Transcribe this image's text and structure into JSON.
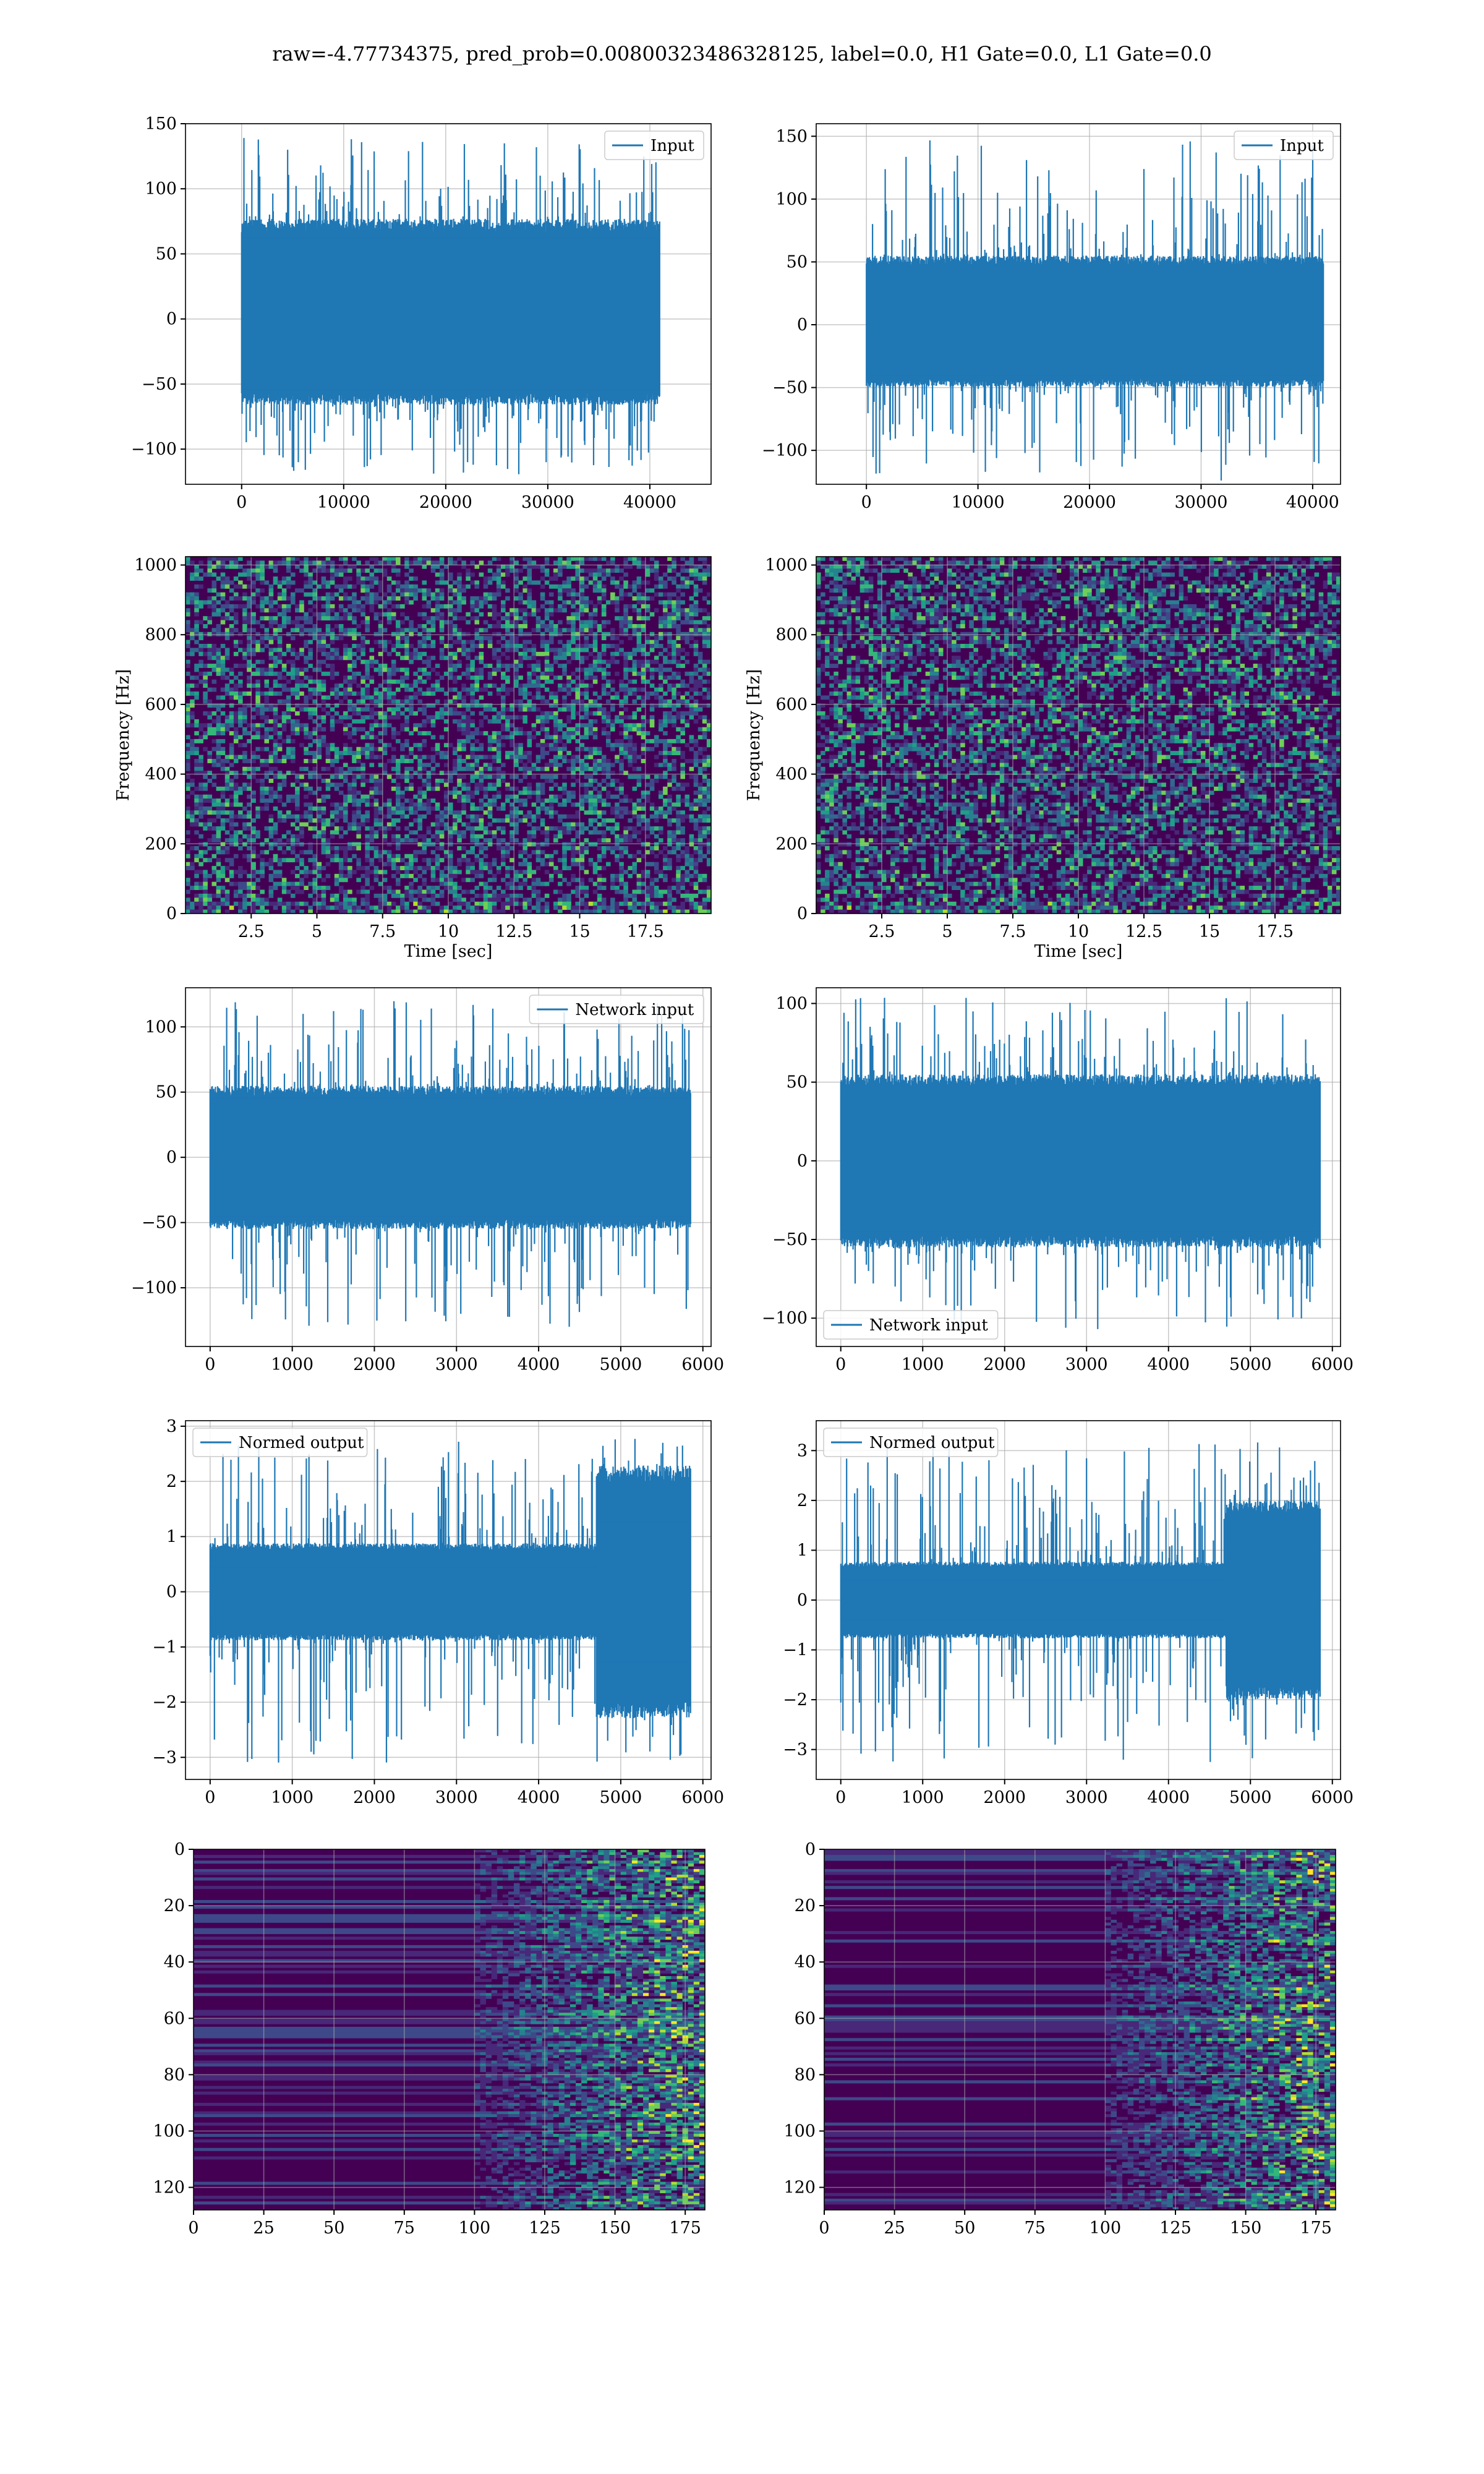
{
  "title": "raw=-4.77734375, pred_prob=0.00800323486328125, label=0.0, H1 Gate=0.0, L1 Gate=0.0",
  "colors": {
    "line": "#1f77b4",
    "grid": "#b0b0b0",
    "viridis_dark": "#440154",
    "frame": "#000000"
  },
  "chart_data": [
    {
      "id": "row1-left",
      "type": "line",
      "legend": "Input",
      "legend_loc": "upper right",
      "xlim": [
        -5500,
        46000
      ],
      "ylim": [
        -127,
        150
      ],
      "xticks": [
        0,
        10000,
        20000,
        30000,
        40000
      ],
      "yticks": [
        -100,
        -50,
        0,
        50,
        100,
        150
      ],
      "x_range": [
        0,
        40960
      ],
      "envelope": {
        "typical_max": 70,
        "typical_min": -60,
        "peak_max": 140,
        "peak_min": -120
      },
      "xlabel": "",
      "ylabel": "",
      "grid": true
    },
    {
      "id": "row1-right",
      "type": "line",
      "legend": "Input",
      "legend_loc": "upper right",
      "xlim": [
        -4500,
        42500
      ],
      "ylim": [
        -127,
        160
      ],
      "xticks": [
        0,
        10000,
        20000,
        30000,
        40000
      ],
      "yticks": [
        -100,
        -50,
        0,
        50,
        100,
        150
      ],
      "x_range": [
        0,
        40960
      ],
      "envelope": {
        "typical_max": 50,
        "typical_min": -45,
        "peak_max": 147,
        "peak_min": -125
      },
      "xlabel": "",
      "ylabel": "",
      "grid": true
    },
    {
      "id": "row2-left",
      "type": "heatmap",
      "subtype": "spectrogram",
      "xlim": [
        0,
        20
      ],
      "ylim": [
        0,
        1024
      ],
      "xticks": [
        2.5,
        5.0,
        7.5,
        10.0,
        12.5,
        15.0,
        17.5
      ],
      "yticks": [
        0,
        200,
        400,
        600,
        800,
        1000
      ],
      "xlabel": "Time [sec]",
      "ylabel": "Frequency [Hz]",
      "grid": true,
      "colormap": "viridis"
    },
    {
      "id": "row2-right",
      "type": "heatmap",
      "subtype": "spectrogram",
      "xlim": [
        0,
        20
      ],
      "ylim": [
        0,
        1024
      ],
      "xticks": [
        2.5,
        5.0,
        7.5,
        10.0,
        12.5,
        15.0,
        17.5
      ],
      "yticks": [
        0,
        200,
        400,
        600,
        800,
        1000
      ],
      "xlabel": "Time [sec]",
      "ylabel": "Frequency [Hz]",
      "grid": true,
      "colormap": "viridis"
    },
    {
      "id": "row3-left",
      "type": "line",
      "legend": "Network input",
      "legend_loc": "upper right",
      "xlim": [
        -300,
        6100
      ],
      "ylim": [
        -145,
        130
      ],
      "xticks": [
        0,
        1000,
        2000,
        3000,
        4000,
        5000,
        6000
      ],
      "yticks": [
        -100,
        -50,
        0,
        50,
        100
      ],
      "x_range": [
        0,
        5850
      ],
      "envelope": {
        "typical_max": 50,
        "typical_min": -50,
        "peak_max": 120,
        "peak_min": -130
      },
      "xlabel": "",
      "ylabel": "",
      "grid": true
    },
    {
      "id": "row3-right",
      "type": "line",
      "legend": "Network input",
      "legend_loc": "lower left",
      "xlim": [
        -300,
        6100
      ],
      "ylim": [
        -118,
        110
      ],
      "xticks": [
        0,
        1000,
        2000,
        3000,
        4000,
        5000,
        6000
      ],
      "yticks": [
        -100,
        -50,
        0,
        50,
        100
      ],
      "x_range": [
        0,
        5850
      ],
      "envelope": {
        "typical_max": 50,
        "typical_min": -50,
        "peak_max": 104,
        "peak_min": -107
      },
      "xlabel": "",
      "ylabel": "",
      "grid": true
    },
    {
      "id": "row4-left",
      "type": "line",
      "legend": "Normed output",
      "legend_loc": "upper left",
      "xlim": [
        -300,
        6100
      ],
      "ylim": [
        -3.4,
        3.1
      ],
      "xticks": [
        0,
        1000,
        2000,
        3000,
        4000,
        5000,
        6000
      ],
      "yticks": [
        -3,
        -2,
        -1,
        0,
        1,
        2,
        3
      ],
      "x_range": [
        0,
        5850
      ],
      "envelope": {
        "typical_max": 0.8,
        "typical_min": -0.8,
        "peak_max": 2.8,
        "peak_min": -3.1,
        "burst_start": 4700
      },
      "xlabel": "",
      "ylabel": "",
      "grid": true
    },
    {
      "id": "row4-right",
      "type": "line",
      "legend": "Normed output",
      "legend_loc": "upper left",
      "xlim": [
        -300,
        6100
      ],
      "ylim": [
        -3.6,
        3.6
      ],
      "xticks": [
        0,
        1000,
        2000,
        3000,
        4000,
        5000,
        6000
      ],
      "yticks": [
        -3,
        -2,
        -1,
        0,
        1,
        2,
        3
      ],
      "x_range": [
        0,
        5850
      ],
      "envelope": {
        "typical_max": 0.7,
        "typical_min": -0.7,
        "peak_max": 3.2,
        "peak_min": -3.3,
        "burst_start": 4700
      },
      "xlabel": "",
      "ylabel": "",
      "grid": true
    },
    {
      "id": "row5-left",
      "type": "heatmap",
      "subtype": "feature-map",
      "xlim": [
        0,
        182
      ],
      "ylim_inverted": [
        128,
        0
      ],
      "xticks": [
        0,
        25,
        50,
        75,
        100,
        125,
        150,
        175
      ],
      "yticks": [
        0,
        20,
        40,
        60,
        80,
        100,
        120
      ],
      "xlabel": "",
      "ylabel": "",
      "grid": true,
      "colormap": "viridis"
    },
    {
      "id": "row5-right",
      "type": "heatmap",
      "subtype": "feature-map",
      "xlim": [
        0,
        182
      ],
      "ylim_inverted": [
        128,
        0
      ],
      "xticks": [
        0,
        25,
        50,
        75,
        100,
        125,
        150,
        175
      ],
      "yticks": [
        0,
        20,
        40,
        60,
        80,
        100,
        120
      ],
      "xlabel": "",
      "ylabel": "",
      "grid": true,
      "colormap": "viridis"
    }
  ]
}
